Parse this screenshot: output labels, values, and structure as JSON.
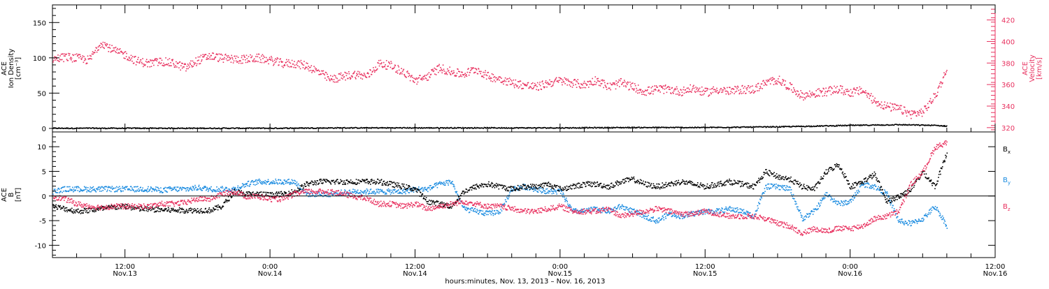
{
  "colors": {
    "black": "#000000",
    "blue": "#1a8be0",
    "red": "#e8315f",
    "background": "#ffffff"
  },
  "chart_data": [
    {
      "type": "scatter",
      "panel": "top",
      "ylabel": [
        "ACE",
        "Ion Density",
        "[cm⁻³]"
      ],
      "ylim": [
        -5,
        175
      ],
      "yticks": [
        0,
        50,
        100,
        150
      ],
      "ylabel_right": [
        "ACE",
        "Velocity",
        "[km/s]"
      ],
      "ylim_right": [
        316,
        434
      ],
      "yticks_right": [
        320,
        340,
        360,
        380,
        400,
        420
      ],
      "series": [
        {
          "color": "#000000",
          "x": [
            0,
            6,
            12,
            18,
            24,
            30,
            36,
            42,
            48,
            54,
            60,
            66,
            70,
            73,
            74
          ],
          "y": [
            1,
            1,
            1,
            1,
            1.5,
            1.5,
            1.5,
            1.5,
            2,
            2,
            3,
            5,
            6,
            5,
            4
          ]
        },
        {
          "color": "#e8315f",
          "axis": "right",
          "x": [
            0,
            1,
            2,
            3,
            4,
            5,
            6,
            7,
            8,
            9,
            10,
            11,
            12,
            13,
            14,
            15,
            16,
            17,
            18,
            19,
            20,
            21,
            22,
            23,
            24,
            25,
            26,
            27,
            28,
            29,
            30,
            31,
            32,
            33,
            34,
            35,
            36,
            37,
            38,
            39,
            40,
            41,
            42,
            43,
            44,
            45,
            46,
            47,
            48,
            49,
            50,
            51,
            52,
            53,
            54,
            55,
            56,
            57,
            58,
            59,
            60,
            61,
            62,
            63,
            64,
            65,
            66,
            67,
            68,
            69,
            70,
            71,
            72,
            73,
            74
          ],
          "y": [
            384,
            386,
            385,
            383,
            400,
            392,
            388,
            382,
            380,
            382,
            380,
            376,
            383,
            387,
            385,
            384,
            384,
            385,
            383,
            380,
            380,
            378,
            372,
            365,
            368,
            370,
            368,
            380,
            378,
            372,
            364,
            368,
            376,
            372,
            370,
            375,
            368,
            366,
            362,
            360,
            358,
            362,
            364,
            362,
            360,
            365,
            358,
            362,
            358,
            354,
            356,
            356,
            354,
            357,
            353,
            356,
            354,
            356,
            356,
            362,
            365,
            358,
            350,
            352,
            354,
            356,
            353,
            355,
            345,
            340,
            338,
            333,
            335,
            350,
            375
          ]
        }
      ]
    },
    {
      "type": "scatter",
      "panel": "bottom",
      "ylabel": [
        "ACE",
        "B",
        "[nT]"
      ],
      "ylim": [
        -12.5,
        13
      ],
      "yticks": [
        -10,
        -5,
        0,
        5,
        10
      ],
      "legend": {
        "position": "right",
        "entries": [
          "B",
          "B",
          "B"
        ],
        "subscripts": [
          "x",
          "y",
          "z"
        ]
      },
      "series": [
        {
          "name": "Bx",
          "color": "#000000",
          "x": [
            0,
            1,
            2,
            3,
            4,
            5,
            6,
            7,
            8,
            9,
            10,
            11,
            12,
            13,
            14,
            15,
            16,
            17,
            18,
            19,
            20,
            21,
            22,
            23,
            24,
            25,
            26,
            27,
            28,
            29,
            30,
            31,
            32,
            33,
            34,
            35,
            36,
            37,
            38,
            39,
            40,
            41,
            42,
            43,
            44,
            45,
            46,
            47,
            48,
            49,
            50,
            51,
            52,
            53,
            54,
            55,
            56,
            57,
            58,
            59,
            60,
            61,
            62,
            63,
            64,
            65,
            66,
            67,
            68,
            69,
            70,
            71,
            72,
            73,
            74
          ],
          "y": [
            -2,
            -2.5,
            -3,
            -2.8,
            -2.5,
            -2.2,
            -2,
            -2.5,
            -2.6,
            -2.7,
            -2.8,
            -2.8,
            -2.8,
            -2.8,
            -2,
            1,
            0.5,
            0.5,
            0.3,
            0.5,
            1,
            2.5,
            3,
            3,
            3,
            3,
            3,
            3,
            2.5,
            2,
            1.5,
            -1,
            -1.5,
            -2,
            1,
            2,
            2.5,
            2,
            1.5,
            2,
            2,
            2.5,
            1.5,
            2,
            2.5,
            2.5,
            2,
            3,
            3.5,
            2.5,
            2,
            2.5,
            3,
            2.5,
            2,
            2.5,
            3,
            2.5,
            2,
            5,
            4,
            3.5,
            2,
            1.5,
            5,
            6.5,
            2,
            3,
            4.5,
            -1,
            0,
            1.5,
            5,
            2,
            9
          ]
        },
        {
          "name": "By",
          "color": "#1a8be0",
          "x": [
            0,
            1,
            2,
            3,
            4,
            5,
            6,
            7,
            8,
            9,
            10,
            11,
            12,
            13,
            14,
            15,
            16,
            17,
            18,
            19,
            20,
            21,
            22,
            23,
            24,
            25,
            26,
            27,
            28,
            29,
            30,
            31,
            32,
            33,
            34,
            35,
            36,
            37,
            38,
            39,
            40,
            41,
            42,
            43,
            44,
            45,
            46,
            47,
            48,
            49,
            50,
            51,
            52,
            53,
            54,
            55,
            56,
            57,
            58,
            59,
            60,
            61,
            62,
            63,
            64,
            65,
            66,
            67,
            68,
            69,
            70,
            71,
            72,
            73,
            74
          ],
          "y": [
            1,
            1.5,
            1.5,
            1.5,
            1.5,
            1.5,
            1.5,
            1.5,
            1.5,
            1.3,
            1.5,
            1.5,
            1.8,
            1.5,
            1.5,
            1.5,
            2.5,
            3,
            3,
            3,
            3,
            0.5,
            0.5,
            0.5,
            0.8,
            1,
            1,
            1,
            1,
            1,
            1.5,
            1.5,
            2.5,
            3,
            -2.5,
            -3,
            -3.5,
            -3,
            1.5,
            2,
            1.5,
            1,
            1,
            -3,
            -3,
            -2.5,
            -3,
            -2,
            -3,
            -4,
            -5,
            -3.5,
            -4,
            -3.5,
            -3,
            -3,
            -2.5,
            -3,
            -4,
            2,
            2,
            1.5,
            -4.5,
            -3,
            0.5,
            -1.5,
            -1,
            2.5,
            2,
            0.5,
            -5,
            -5.5,
            -4.5,
            -2,
            -6
          ]
        },
        {
          "name": "Bz",
          "color": "#e8315f",
          "x": [
            0,
            1,
            2,
            3,
            4,
            5,
            6,
            7,
            8,
            9,
            10,
            11,
            12,
            13,
            14,
            15,
            16,
            17,
            18,
            19,
            20,
            21,
            22,
            23,
            24,
            25,
            26,
            27,
            28,
            29,
            30,
            31,
            32,
            33,
            34,
            35,
            36,
            37,
            38,
            39,
            40,
            41,
            42,
            43,
            44,
            45,
            46,
            47,
            48,
            49,
            50,
            51,
            52,
            53,
            54,
            55,
            56,
            57,
            58,
            59,
            60,
            61,
            62,
            63,
            64,
            65,
            66,
            67,
            68,
            69,
            70,
            71,
            72,
            73,
            74
          ],
          "y": [
            0,
            -0.5,
            -1.5,
            -2,
            -2.2,
            -2,
            -2,
            -2,
            -2,
            -1.5,
            -1.5,
            -1.2,
            -0.5,
            -0.5,
            0.5,
            1,
            0,
            0,
            -0.5,
            -0.5,
            0.5,
            1,
            1,
            1,
            0.5,
            0,
            -0.5,
            -1.5,
            -1.5,
            -2,
            -1.5,
            -2.5,
            -2,
            -1.5,
            -1,
            -1.5,
            -2,
            -2,
            -2.5,
            -3,
            -3,
            -2.5,
            -2,
            -3,
            -3,
            -3,
            -2.5,
            -4,
            -3.5,
            -3,
            -2.5,
            -3,
            -3.5,
            -3.5,
            -3,
            -3.5,
            -4,
            -4,
            -4,
            -4.5,
            -5.5,
            -6,
            -7.5,
            -6.5,
            -7,
            -6.5,
            -6.5,
            -6,
            -4.5,
            -4,
            -3,
            2.5,
            5,
            10,
            11
          ]
        }
      ]
    }
  ],
  "x_axis": {
    "unit": "hours since 06:00 Nov. 13, 2013",
    "range": [
      0,
      78
    ],
    "major_ticks": [
      {
        "x": 6,
        "time": "12:00",
        "date": "Nov.13"
      },
      {
        "x": 18,
        "time": "0:00",
        "date": "Nov.14"
      },
      {
        "x": 30,
        "time": "12:00",
        "date": "Nov.14"
      },
      {
        "x": 42,
        "time": "0:00",
        "date": "Nov.15"
      },
      {
        "x": 54,
        "time": "12:00",
        "date": "Nov.15"
      },
      {
        "x": 66,
        "time": "0:00",
        "date": "Nov.16"
      },
      {
        "x": 78,
        "time": "12:00",
        "date": "Nov.16"
      }
    ],
    "title": "hours:minutes, Nov. 13, 2013 – Nov. 16, 2013"
  }
}
